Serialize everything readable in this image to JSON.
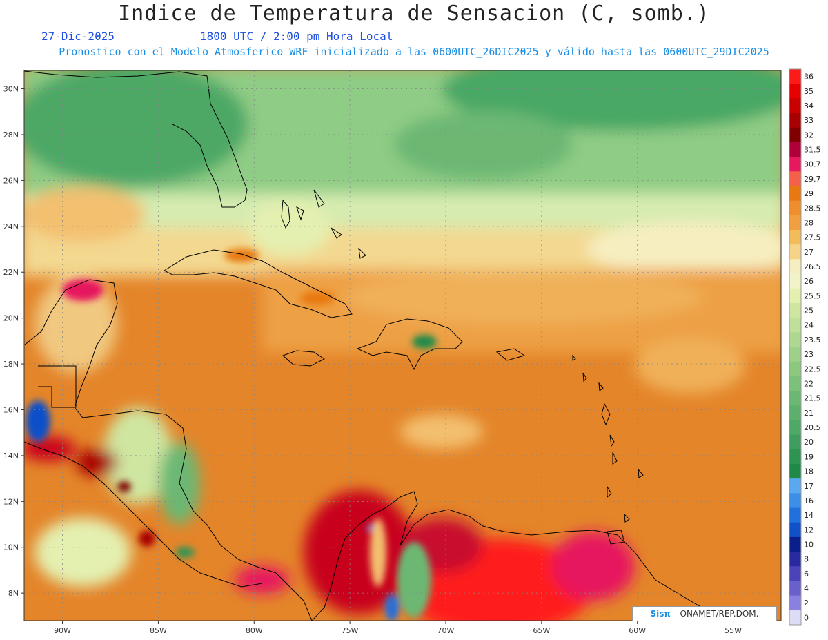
{
  "header": {
    "title": "Indice de Temperatura de Sensacion (C, somb.)",
    "date": "27-Dic-2025",
    "time": "1800 UTC / 2:00 pm Hora Local",
    "subtitle": "Pronostico con el Modelo Atmosferico WRF inicializado a las 0600UTC_26DIC2025 y válido hasta las  0600UTC_29DIC2025"
  },
  "map": {
    "lon_range": [
      -92,
      -52.5
    ],
    "lat_range": [
      6.8,
      30.8
    ],
    "lat_ticks": [
      "8N",
      "10N",
      "12N",
      "14N",
      "16N",
      "18N",
      "20N",
      "22N",
      "24N",
      "26N",
      "28N",
      "30N"
    ],
    "lon_ticks": [
      "90W",
      "85W",
      "80W",
      "75W",
      "70W",
      "65W",
      "60W",
      "55W"
    ]
  },
  "colorbar": {
    "labels": [
      "36",
      "35",
      "34",
      "33",
      "32",
      "31.5",
      "30.7",
      "29.7",
      "29",
      "28.5",
      "28",
      "27.5",
      "27",
      "26.5",
      "26",
      "25.5",
      "25",
      "24",
      "23.5",
      "23",
      "22.5",
      "22",
      "21.5",
      "21",
      "20.5",
      "20",
      "19",
      "18",
      "17",
      "16",
      "14",
      "12",
      "10",
      "8",
      "6",
      "4",
      "2",
      "0"
    ],
    "colors": [
      "#ff1a1a",
      "#e60000",
      "#c80000",
      "#a80000",
      "#800000",
      "#b0003a",
      "#e6195e",
      "#f5604a",
      "#e87810",
      "#ee8e2c",
      "#f0a040",
      "#f3bc5a",
      "#f5d48a",
      "#f6eec0",
      "#f2f4c8",
      "#e4f0b0",
      "#cfe6a0",
      "#bfe09a",
      "#aed891",
      "#9fd08a",
      "#8dc87f",
      "#7dc07a",
      "#6cb873",
      "#5db06c",
      "#4ea866",
      "#3f9e5f",
      "#2d9452",
      "#1f8a48",
      "#5aa8f0",
      "#3c8ee6",
      "#2070dd",
      "#1050c8",
      "#0a1e8c",
      "#2a2aa0",
      "#4a44b8",
      "#6a60cc",
      "#8a80e0",
      "#dcdcf6"
    ]
  },
  "credit": {
    "logo": "Sisπ",
    "text": " – ONAMET/REP.DOM."
  }
}
